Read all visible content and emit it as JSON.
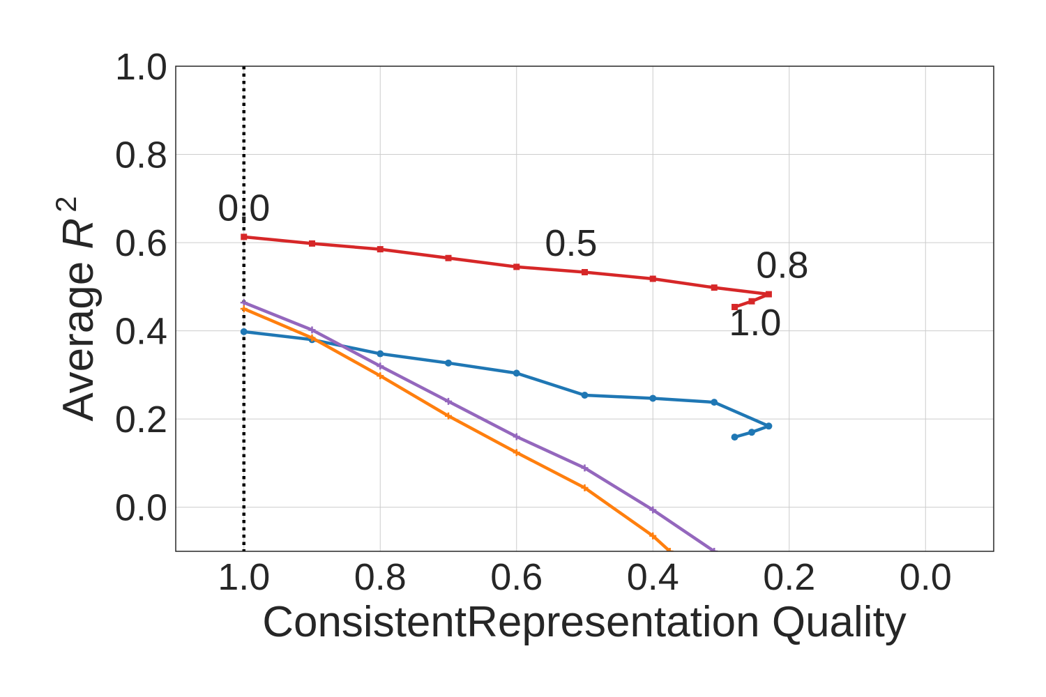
{
  "chart_data": {
    "type": "line",
    "xlabel": "ConsistentRepresentation Quality",
    "ylabel": "Average R^2",
    "xlim": [
      1.1,
      -0.1
    ],
    "ylim": [
      -0.1,
      1.0
    ],
    "x_reversed": true,
    "grid": true,
    "xticks": [
      "1.0",
      "0.8",
      "0.6",
      "0.4",
      "0.2",
      "0.0"
    ],
    "yticks": [
      "0.0",
      "0.2",
      "0.4",
      "0.6",
      "0.8",
      "1.0"
    ],
    "reference_line": {
      "x": 1.0,
      "style": "dotted",
      "color": "#000000"
    },
    "annotations": [
      {
        "text": "0.0",
        "x": 1.0,
        "y": 0.65
      },
      {
        "text": "0.5",
        "x": 0.52,
        "y": 0.57
      },
      {
        "text": "0.8",
        "x": 0.21,
        "y": 0.52
      },
      {
        "text": "1.0",
        "x": 0.25,
        "y": 0.39
      }
    ],
    "series": [
      {
        "color": "#d62728",
        "marker": "square",
        "x": [
          1.0,
          0.9,
          0.8,
          0.7,
          0.6,
          0.5,
          0.4,
          0.31,
          0.23,
          0.255,
          0.28
        ],
        "y": [
          0.613,
          0.598,
          0.585,
          0.565,
          0.545,
          0.533,
          0.518,
          0.498,
          0.483,
          0.467,
          0.454
        ]
      },
      {
        "color": "#1f77b4",
        "marker": "circle",
        "x": [
          1.0,
          0.9,
          0.8,
          0.7,
          0.6,
          0.5,
          0.4,
          0.31,
          0.23,
          0.255,
          0.28
        ],
        "y": [
          0.398,
          0.38,
          0.348,
          0.327,
          0.304,
          0.254,
          0.247,
          0.238,
          0.184,
          0.17,
          0.159
        ]
      },
      {
        "color": "#9467bd",
        "marker": "plus",
        "x": [
          1.0,
          0.9,
          0.8,
          0.7,
          0.6,
          0.5,
          0.4,
          0.31
        ],
        "y": [
          0.464,
          0.402,
          0.32,
          0.24,
          0.16,
          0.089,
          -0.006,
          -0.1
        ]
      },
      {
        "color": "#ff7f0e",
        "marker": "plus",
        "x": [
          1.0,
          0.9,
          0.8,
          0.7,
          0.6,
          0.5,
          0.4,
          0.375
        ],
        "y": [
          0.45,
          0.384,
          0.298,
          0.207,
          0.124,
          0.044,
          -0.065,
          -0.1
        ]
      }
    ]
  }
}
